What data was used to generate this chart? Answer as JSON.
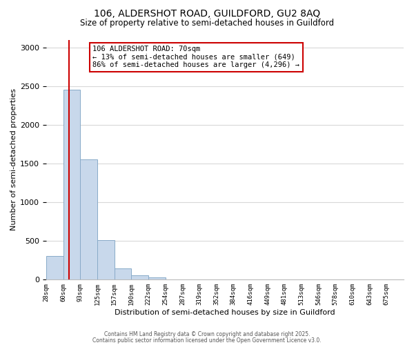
{
  "title_line1": "106, ALDERSHOT ROAD, GUILDFORD, GU2 8AQ",
  "title_line2": "Size of property relative to semi-detached houses in Guildford",
  "xlabel": "Distribution of semi-detached houses by size in Guildford",
  "ylabel": "Number of semi-detached properties",
  "bin_labels": [
    "28sqm",
    "60sqm",
    "93sqm",
    "125sqm",
    "157sqm",
    "190sqm",
    "222sqm",
    "254sqm",
    "287sqm",
    "319sqm",
    "352sqm",
    "384sqm",
    "416sqm",
    "449sqm",
    "481sqm",
    "513sqm",
    "546sqm",
    "578sqm",
    "610sqm",
    "643sqm",
    "675sqm"
  ],
  "bar_values": [
    300,
    2450,
    1550,
    510,
    140,
    55,
    25,
    0,
    0,
    0,
    0,
    0,
    0,
    0,
    0,
    0,
    0,
    0,
    0,
    0,
    0
  ],
  "bar_color": "#c8d8eb",
  "bar_edge_color": "#88aac8",
  "grid_color": "#d8d8d8",
  "red_line_x": 1.33,
  "annotation_text": "106 ALDERSHOT ROAD: 70sqm\n← 13% of semi-detached houses are smaller (649)\n86% of semi-detached houses are larger (4,296) →",
  "annotation_box_color": "#ffffff",
  "annotation_box_edge_color": "#cc0000",
  "ylim": [
    0,
    3100
  ],
  "yticks": [
    0,
    500,
    1000,
    1500,
    2000,
    2500,
    3000
  ],
  "footnote_line1": "Contains HM Land Registry data © Crown copyright and database right 2025.",
  "footnote_line2": "Contains public sector information licensed under the Open Government Licence v3.0.",
  "background_color": "#ffffff",
  "red_line_color": "#cc0000",
  "title_fontsize": 10,
  "subtitle_fontsize": 8.5,
  "ylabel_fontsize": 8,
  "xlabel_fontsize": 8,
  "ytick_fontsize": 8,
  "xtick_fontsize": 6.5,
  "footnote_fontsize": 5.5,
  "annot_fontsize": 7.5
}
